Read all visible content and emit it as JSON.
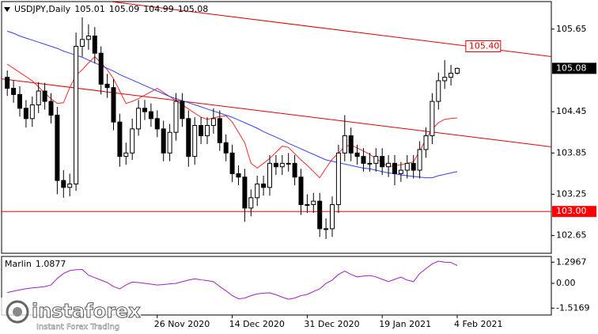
{
  "chart_data": {
    "type": "candlestick",
    "title": "USDJPY,Daily",
    "categories": [
      null,
      null,
      null,
      null,
      null,
      null,
      null,
      null,
      null,
      null,
      null,
      null,
      null,
      null,
      null,
      null,
      null,
      null,
      null,
      null,
      null,
      null,
      null,
      null,
      "26 Nov 2020",
      null,
      null,
      null,
      null,
      null,
      null,
      null,
      null,
      null,
      null,
      null,
      "14 Dec 2020",
      null,
      null,
      null,
      null,
      null,
      null,
      null,
      null,
      null,
      null,
      null,
      "31 Dec 2020",
      null,
      null,
      null,
      null,
      null,
      null,
      null,
      null,
      null,
      null,
      null,
      "19 Jan 2021",
      null,
      null,
      null,
      null,
      null,
      null,
      null,
      null,
      null,
      null,
      null,
      "4 Feb 2021"
    ],
    "open": [
      104.95,
      104.79,
      104.7,
      104.5,
      104.35,
      104.55,
      104.75,
      104.6,
      104.4,
      103.45,
      103.35,
      103.4,
      105.4,
      105.5,
      105.55,
      105.3,
      104.85,
      104.8,
      104.3,
      103.8,
      103.85,
      104.2,
      104.5,
      104.45,
      104.35,
      104.2,
      103.85,
      104.15,
      104.6,
      104.35,
      103.8,
      104.25,
      104.1,
      104.25,
      104.35,
      104.0,
      103.85,
      103.55,
      103.5,
      103.05,
      103.2,
      103.4,
      103.35,
      103.7,
      103.65,
      103.7,
      103.7,
      103.5,
      103.1,
      103.1,
      103.15,
      102.75,
      102.75,
      103.1,
      103.85,
      104.1,
      103.85,
      103.8,
      103.7,
      103.7,
      103.8,
      103.65,
      103.7,
      103.55,
      103.6,
      103.7,
      103.6,
      103.9,
      104.1,
      104.6,
      104.9,
      104.95,
      105.01
    ],
    "high": [
      105.05,
      104.9,
      104.82,
      104.62,
      104.67,
      104.88,
      104.87,
      104.72,
      104.52,
      103.6,
      103.55,
      105.6,
      105.82,
      105.72,
      105.68,
      105.4,
      105.0,
      104.92,
      104.42,
      104.0,
      104.35,
      104.62,
      104.62,
      104.57,
      104.47,
      104.32,
      104.27,
      104.72,
      104.72,
      104.47,
      104.37,
      104.37,
      104.37,
      104.5,
      104.47,
      104.12,
      103.97,
      103.67,
      103.62,
      103.32,
      103.52,
      103.52,
      103.82,
      103.82,
      103.82,
      103.85,
      103.82,
      103.62,
      103.25,
      103.27,
      103.27,
      102.9,
      103.22,
      103.97,
      104.4,
      104.22,
      103.97,
      103.92,
      103.85,
      103.92,
      103.92,
      103.82,
      103.82,
      103.72,
      103.82,
      103.82,
      104.02,
      104.22,
      104.72,
      105.02,
      105.2,
      105.13,
      105.09
    ],
    "low": [
      104.68,
      104.58,
      104.38,
      104.22,
      104.23,
      104.43,
      104.48,
      104.28,
      103.25,
      103.2,
      103.22,
      103.3,
      105.25,
      105.35,
      105.15,
      104.7,
      104.65,
      104.18,
      103.65,
      103.68,
      103.75,
      104.1,
      104.33,
      104.23,
      104.08,
      103.73,
      103.73,
      104.03,
      104.23,
      103.65,
      103.68,
      103.98,
      103.98,
      104.13,
      103.88,
      103.73,
      103.43,
      103.38,
      102.85,
      102.93,
      103.08,
      103.23,
      103.23,
      103.53,
      103.53,
      103.58,
      103.38,
      102.95,
      102.98,
      102.98,
      102.63,
      102.6,
      102.63,
      102.98,
      103.73,
      103.73,
      103.68,
      103.58,
      103.58,
      103.58,
      103.53,
      103.5,
      103.38,
      103.43,
      103.48,
      103.48,
      103.48,
      103.78,
      103.98,
      104.48,
      104.78,
      104.83,
      104.99
    ],
    "close": [
      104.79,
      104.7,
      104.5,
      104.35,
      104.55,
      104.75,
      104.6,
      104.4,
      103.45,
      103.35,
      103.4,
      105.4,
      105.5,
      105.55,
      105.3,
      104.85,
      104.8,
      104.3,
      103.8,
      103.85,
      104.2,
      104.5,
      104.45,
      104.35,
      104.2,
      103.85,
      104.15,
      104.6,
      104.35,
      103.8,
      104.25,
      104.1,
      104.25,
      104.35,
      104.0,
      103.85,
      103.55,
      103.5,
      103.05,
      103.2,
      103.4,
      103.35,
      103.7,
      103.65,
      103.7,
      103.7,
      103.5,
      103.1,
      103.1,
      103.15,
      102.75,
      102.75,
      103.1,
      103.85,
      104.1,
      103.85,
      103.8,
      103.7,
      103.7,
      103.8,
      103.65,
      103.7,
      103.55,
      103.6,
      103.7,
      103.6,
      103.9,
      104.1,
      104.6,
      104.9,
      104.95,
      105.01,
      105.08
    ],
    "candle_color": "#000000",
    "bull_fill": "#ffffff",
    "series": [
      {
        "color": "#ff2a2a",
        "values": [
          105.14,
          105.08,
          105.02,
          104.96,
          104.9,
          104.81,
          104.72,
          104.64,
          104.57,
          104.58,
          104.8,
          104.98,
          105.06,
          105.16,
          105.25,
          105.16,
          105.06,
          104.93,
          104.75,
          104.57,
          104.6,
          104.64,
          104.69,
          104.74,
          104.79,
          104.73,
          104.67,
          104.61,
          104.55,
          104.49,
          104.43,
          104.37,
          104.34,
          104.36,
          104.38,
          104.39,
          104.3,
          104.15,
          104.0,
          103.7,
          103.63,
          103.7,
          103.77,
          103.86,
          103.95,
          103.93,
          103.84,
          103.75,
          103.67,
          103.58,
          103.49,
          103.63,
          103.76,
          103.85,
          103.94,
          103.97,
          103.92,
          103.88,
          103.83,
          103.77,
          103.71,
          103.65,
          103.67,
          103.68,
          103.7,
          103.72,
          103.88,
          104.05,
          104.2,
          104.29,
          104.34,
          104.35,
          104.36
        ]
      },
      {
        "color": "#3344ee",
        "values": [
          105.62,
          105.59,
          105.55,
          105.52,
          105.49,
          105.46,
          105.43,
          105.4,
          105.37,
          105.33,
          105.3,
          105.27,
          105.24,
          105.2,
          105.16,
          105.12,
          105.08,
          105.04,
          104.99,
          104.95,
          104.91,
          104.87,
          104.83,
          104.79,
          104.75,
          104.71,
          104.67,
          104.64,
          104.61,
          104.58,
          104.55,
          104.52,
          104.49,
          104.46,
          104.43,
          104.4,
          104.37,
          104.33,
          104.29,
          104.25,
          104.21,
          104.16,
          104.12,
          104.08,
          104.04,
          103.99,
          103.95,
          103.91,
          103.87,
          103.83,
          103.79,
          103.75,
          103.73,
          103.71,
          103.69,
          103.67,
          103.65,
          103.63,
          103.62,
          103.6,
          103.58,
          103.56,
          103.55,
          103.53,
          103.52,
          103.51,
          103.5,
          103.49,
          103.49,
          103.52,
          103.54,
          103.56,
          103.58
        ]
      }
    ],
    "ylim": [
      102.393,
      106.05
    ],
    "yticks": [
      105.65,
      104.45,
      103.85,
      103.25,
      102.65
    ],
    "levels": [
      {
        "value": 103,
        "label": "103.00",
        "color": "#ff0000"
      }
    ],
    "trend_lines": [
      {
        "color": "#e00000",
        "from": [
          16.6,
          106.05
        ],
        "to": [
          87.1,
          105.25
        ],
        "label": {
          "value": 105.4,
          "label": "105.40"
        }
      },
      {
        "color": "#e00000",
        "from": [
          -1.16,
          104.93
        ],
        "to": [
          87.1,
          103.94
        ]
      }
    ],
    "indicator": {
      "type": "line",
      "title": "Marlin",
      "color": "#a020c0",
      "values": [
        -0.56,
        -0.48,
        -0.4,
        -0.33,
        -0.28,
        -0.24,
        -0.2,
        -0.1,
        0.3,
        0.6,
        0.78,
        0.84,
        0.85,
        0.5,
        0.35,
        0.2,
        0.05,
        -0.2,
        -0.34,
        -0.1,
        0.08,
        0.05,
        0.0,
        -0.05,
        -0.1,
        -0.07,
        -0.03,
        0.0,
        0.1,
        0.2,
        0.28,
        0.22,
        0.17,
        0.1,
        -0.2,
        -0.45,
        -0.75,
        -0.95,
        -0.9,
        -0.75,
        -0.65,
        -0.6,
        -0.58,
        -0.7,
        -0.85,
        -0.97,
        -0.9,
        -0.75,
        -0.68,
        -0.5,
        -0.34,
        0.0,
        0.2,
        0.55,
        0.75,
        0.55,
        0.4,
        0.45,
        0.48,
        0.4,
        0.25,
        0.1,
        0.25,
        0.38,
        0.2,
        0.1,
        0.6,
        0.9,
        1.2,
        1.36,
        1.3,
        1.28,
        1.0877
      ],
      "ylim": [
        -1.94,
        1.65
      ],
      "yticks": [
        1.2967,
        {
          "value": 0,
          "label": "0.00"
        },
        -1.5169
      ]
    }
  },
  "watermark": {
    "name": "instaforex",
    "tagline": "Instant Forex Trading"
  }
}
